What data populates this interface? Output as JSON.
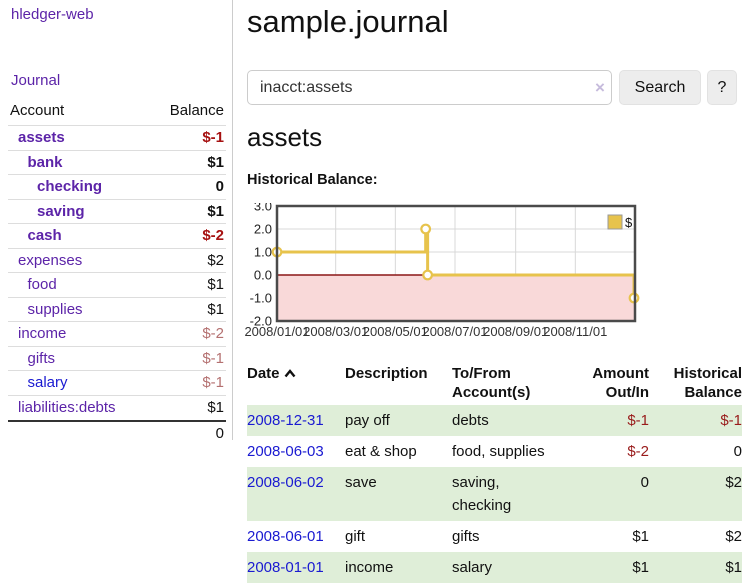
{
  "app": {
    "brand": "hledger-web",
    "nav_journal": "Journal"
  },
  "sidebar": {
    "header": {
      "account": "Account",
      "balance": "Balance"
    },
    "accounts": [
      {
        "name": "assets",
        "depth": 1,
        "bold": true,
        "balance": "$-1",
        "balance_style": "neg-strong",
        "link": "purple"
      },
      {
        "name": "bank",
        "depth": 2,
        "bold": true,
        "balance": "$1",
        "balance_style": "pos",
        "link": "purple"
      },
      {
        "name": "checking",
        "depth": 3,
        "bold": true,
        "balance": "0",
        "balance_style": "pos",
        "link": "purple"
      },
      {
        "name": "saving",
        "depth": 3,
        "bold": true,
        "balance": "$1",
        "balance_style": "pos",
        "link": "purple"
      },
      {
        "name": "cash",
        "depth": 2,
        "bold": true,
        "balance": "$-2",
        "balance_style": "neg-strong",
        "link": "purple"
      },
      {
        "name": "expenses",
        "depth": 1,
        "bold": false,
        "balance": "$2",
        "balance_style": "pos",
        "link": "purple"
      },
      {
        "name": "food",
        "depth": 2,
        "bold": false,
        "balance": "$1",
        "balance_style": "pos",
        "link": "purple"
      },
      {
        "name": "supplies",
        "depth": 2,
        "bold": false,
        "balance": "$1",
        "balance_style": "pos",
        "link": "purple"
      },
      {
        "name": "income",
        "depth": 1,
        "bold": false,
        "balance": "$-2",
        "balance_style": "neg-muted",
        "link": "purple"
      },
      {
        "name": "gifts",
        "depth": 2,
        "bold": false,
        "balance": "$-1",
        "balance_style": "neg-muted",
        "link": "purple"
      },
      {
        "name": "salary",
        "depth": 2,
        "bold": false,
        "balance": "$-1",
        "balance_style": "neg-muted",
        "link": "blue"
      },
      {
        "name": "liabilities:debts",
        "depth": 1,
        "bold": false,
        "balance": "$1",
        "balance_style": "pos",
        "link": "purple"
      }
    ],
    "total": "0"
  },
  "main": {
    "title": "sample.journal",
    "search": {
      "value": "inacct:assets",
      "clear_icon": "×",
      "search_button": "Search",
      "help_button": "?"
    },
    "section_title": "assets",
    "chart_label": "Historical Balance:"
  },
  "chart_data": {
    "type": "line",
    "title": "Historical Balance",
    "series": [
      {
        "name": "$",
        "step": true,
        "points": [
          {
            "date": "2008-01-01",
            "value": 1
          },
          {
            "date": "2008-06-01",
            "value": 2
          },
          {
            "date": "2008-06-03",
            "value": 0
          },
          {
            "date": "2008-12-31",
            "value": -1
          }
        ]
      }
    ],
    "ylim": [
      -2,
      3
    ],
    "yticks": [
      3.0,
      2.0,
      1.0,
      0.0,
      -1.0,
      -2.0
    ],
    "ytick_labels": [
      "3.0",
      "2.0",
      "1.0",
      "0.0",
      "-1.0",
      "-2.0"
    ],
    "xticks": [
      "2008-01-01",
      "2008-03-01",
      "2008-05-01",
      "2008-07-01",
      "2008-09-01",
      "2008-11-01"
    ],
    "xtick_labels": [
      "2008/01/01",
      "2008/03/01",
      "2008/05/01",
      "2008/07/01",
      "2008/09/01",
      "2008/11/01"
    ],
    "x_start": "2008-01-01",
    "x_end": "2008-12-31",
    "legend": {
      "label": "$",
      "position": "top-right"
    },
    "grid": true,
    "negative_region_shaded": true,
    "colors": {
      "line": "#e7c34c",
      "point_fill": "#ffffff",
      "zero_line": "#8b1717",
      "negative_fill": "#f9d9d9",
      "grid": "#d8d8d8",
      "frame": "#4a4a4a"
    }
  },
  "table": {
    "columns": [
      "Date",
      "Description",
      "To/From Account(s)",
      "Amount Out/In",
      "Historical Balance"
    ],
    "date_sort": "ascending",
    "rows": [
      {
        "date": "2008-12-31",
        "description": "pay off",
        "accounts": "debts",
        "amount": "$-1",
        "amount_neg": true,
        "balance": "$-1",
        "balance_neg": true,
        "green": true
      },
      {
        "date": "2008-06-03",
        "description": "eat & shop",
        "accounts": "food, supplies",
        "amount": "$-2",
        "amount_neg": true,
        "balance": "0",
        "balance_neg": false,
        "green": false
      },
      {
        "date": "2008-06-02",
        "description": "save",
        "accounts": "saving, checking",
        "amount": "0",
        "amount_neg": false,
        "balance": "$2",
        "balance_neg": false,
        "green": true
      },
      {
        "date": "2008-06-01",
        "description": "gift",
        "accounts": "gifts",
        "amount": "$1",
        "amount_neg": false,
        "balance": "$2",
        "balance_neg": false,
        "green": false
      },
      {
        "date": "2008-01-01",
        "description": "income",
        "accounts": "salary",
        "amount": "$1",
        "amount_neg": false,
        "balance": "$1",
        "balance_neg": false,
        "green": true
      }
    ]
  },
  "colors": {
    "link_purple": "#5c24a8",
    "link_blue": "#1a1ad1",
    "negative_strong": "#a61111",
    "negative_muted": "#b47070",
    "negative_table": "#991b1b",
    "row_green": "#dfeed8",
    "button_bg": "#ededed",
    "divider": "#ccc"
  }
}
